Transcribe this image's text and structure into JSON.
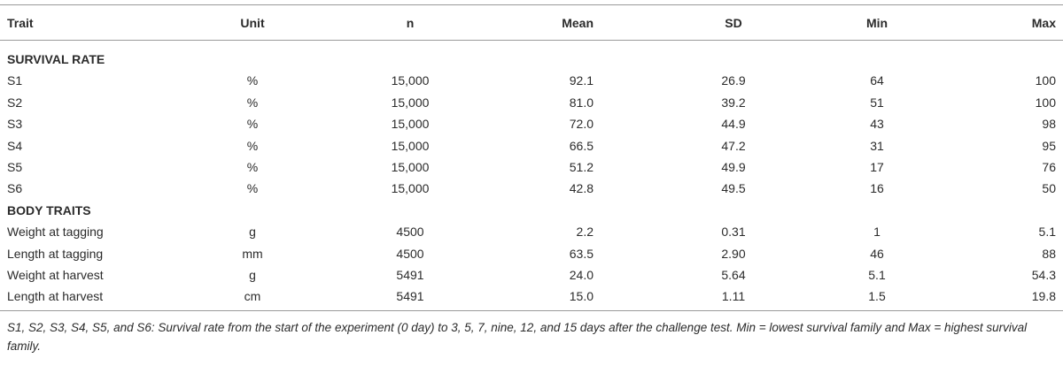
{
  "table": {
    "header": [
      "Trait",
      "Unit",
      "n",
      "Mean",
      "SD",
      "Min",
      "Max"
    ],
    "sections": [
      {
        "title": "SURVIVAL RATE",
        "rows": [
          [
            "S1",
            "%",
            "15,000",
            "92.1",
            "26.9",
            "64",
            "100"
          ],
          [
            "S2",
            "%",
            "15,000",
            "81.0",
            "39.2",
            "51",
            "100"
          ],
          [
            "S3",
            "%",
            "15,000",
            "72.0",
            "44.9",
            "43",
            "98"
          ],
          [
            "S4",
            "%",
            "15,000",
            "66.5",
            "47.2",
            "31",
            "95"
          ],
          [
            "S5",
            "%",
            "15,000",
            "51.2",
            "49.9",
            "17",
            "76"
          ],
          [
            "S6",
            "%",
            "15,000",
            "42.8",
            "49.5",
            "16",
            "50"
          ]
        ]
      },
      {
        "title": "BODY TRAITS",
        "rows": [
          [
            "Weight at tagging",
            "g",
            "4500",
            "2.2",
            "0.31",
            "1",
            "5.1"
          ],
          [
            "Length at tagging",
            "mm",
            "4500",
            "63.5",
            "2.90",
            "46",
            "88"
          ],
          [
            "Weight at harvest",
            "g",
            "5491",
            "24.0",
            "5.64",
            "5.1",
            "54.3"
          ],
          [
            "Length at harvest",
            "cm",
            "5491",
            "15.0",
            "1.11",
            "1.5",
            "19.8"
          ]
        ]
      }
    ]
  },
  "footnote": "S1, S2, S3, S4, S5, and S6: Survival rate from the start of the experiment (0 day) to 3, 5, 7, nine, 12, and 15 days after the challenge test. Min = lowest survival family and Max = highest survival family."
}
